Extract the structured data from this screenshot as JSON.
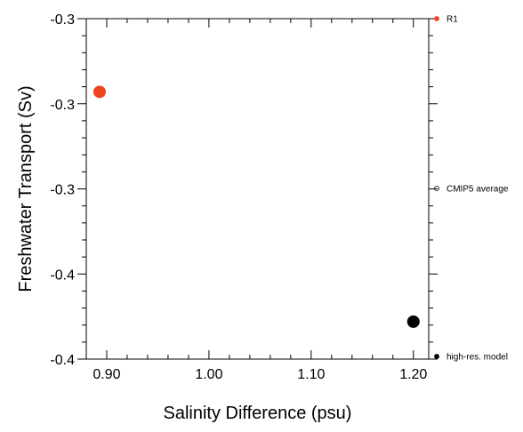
{
  "chart_data": {
    "type": "scatter",
    "xlabel": "Salinity Difference (psu)",
    "ylabel": "Freshwater Transport (Sv)",
    "xlim": [
      0.88,
      1.215
    ],
    "ylim": [
      -0.25,
      -0.45
    ],
    "x_ticks": [
      {
        "value": 0.9,
        "label": "0.90"
      },
      {
        "value": 1.0,
        "label": "1.00"
      },
      {
        "value": 1.1,
        "label": "1.10"
      },
      {
        "value": 1.2,
        "label": "1.20"
      }
    ],
    "y_ticks": [
      {
        "value": -0.25,
        "label": "-0.3"
      },
      {
        "value": -0.3,
        "label": "-0.3"
      },
      {
        "value": -0.35,
        "label": "-0.3"
      },
      {
        "value": -0.4,
        "label": "-0.4"
      },
      {
        "value": -0.45,
        "label": "-0.4"
      }
    ],
    "grid": false,
    "legend_placement": "right outside",
    "series": [
      {
        "name": "R1",
        "color": "#f0431c",
        "marker": "filled-circle",
        "points": [
          {
            "x": 0.893,
            "y": -0.293
          }
        ]
      },
      {
        "name": "CMIP5 average",
        "color": "#000000",
        "marker": "open-circle",
        "points": []
      },
      {
        "name": "high-res. model",
        "color": "#000000",
        "marker": "filled-circle",
        "points": [
          {
            "x": 1.2,
            "y": -0.428
          }
        ]
      }
    ]
  }
}
